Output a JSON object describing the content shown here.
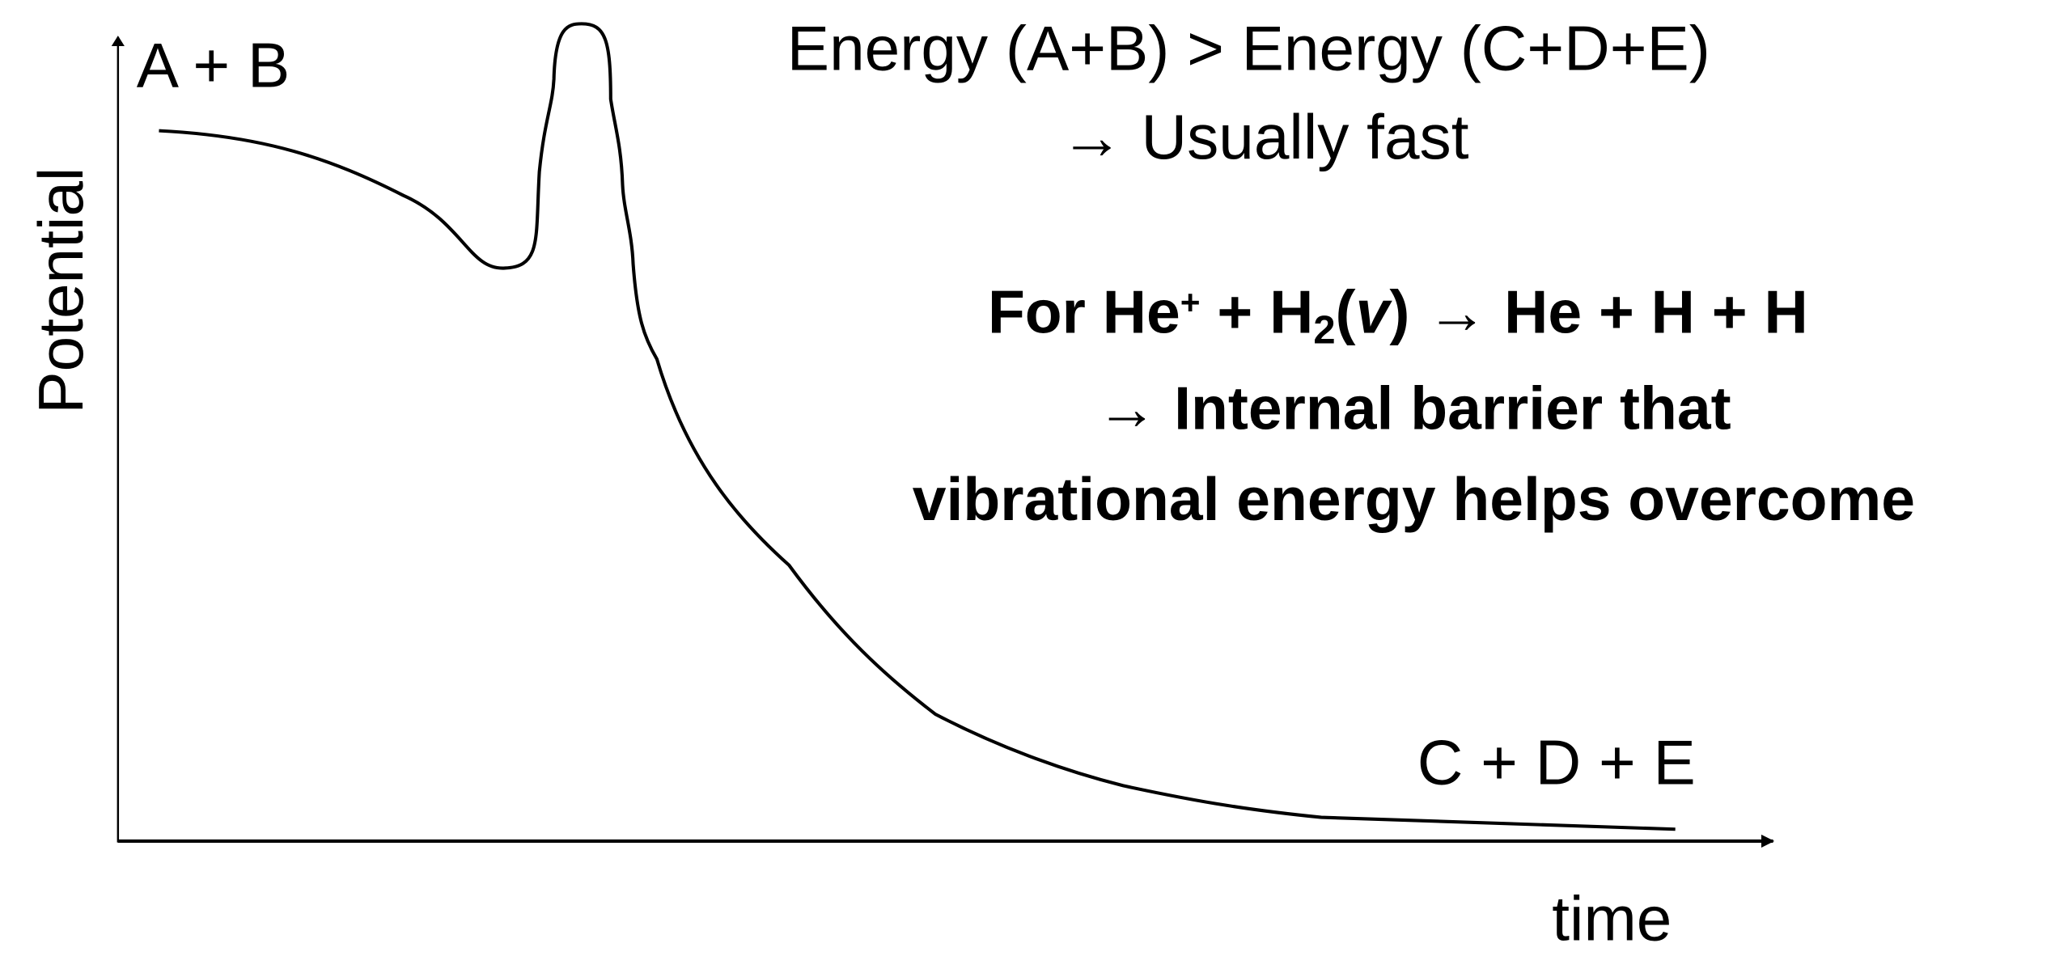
{
  "axes": {
    "y_label": "Potential",
    "x_label": "time"
  },
  "states": {
    "start": "A + B",
    "end": "C + D + E"
  },
  "note": {
    "line1": "Energy (A+B) > Energy (C+D+E)",
    "line2": "→ Usually fast"
  },
  "example": {
    "line1_parts": [
      "For He",
      "+",
      " + H",
      "2",
      "(",
      "v",
      ") → He + H + H"
    ],
    "line2": "→ Internal barrier that",
    "line3": "vibrational energy helps overcome"
  }
}
